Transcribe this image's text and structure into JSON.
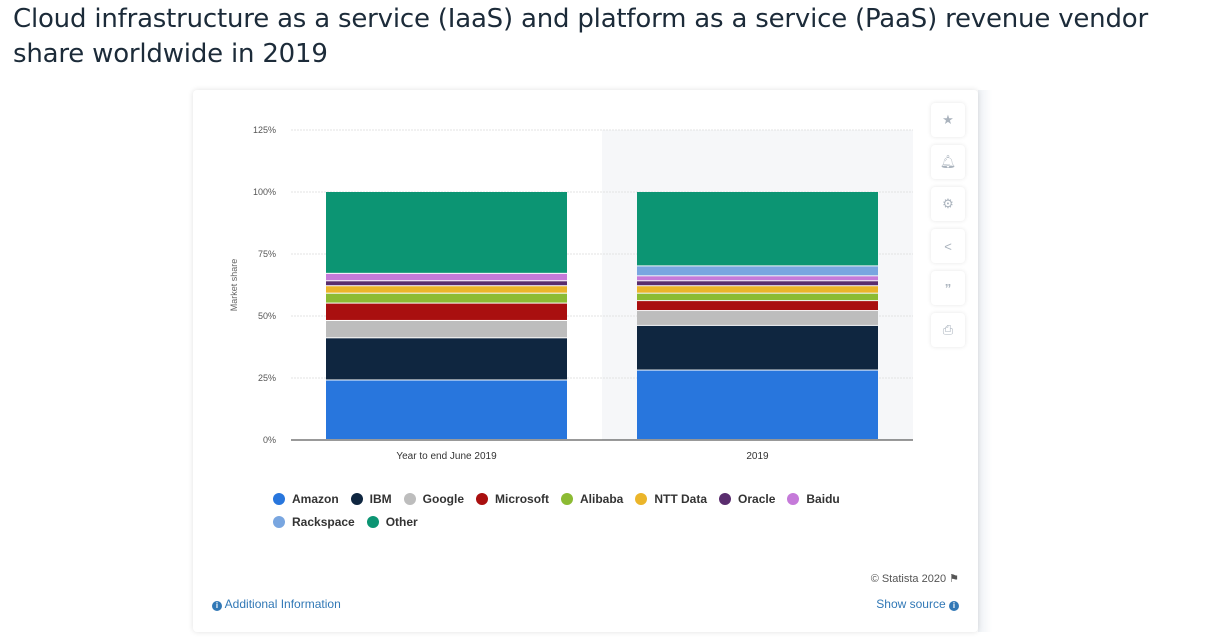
{
  "page_title": "Cloud infrastructure as a service (IaaS) and platform as a service (PaaS) revenue vendor share worldwide in 2019",
  "toolbar": {
    "icons": [
      "star-icon",
      "bell-icon",
      "gear-icon",
      "share-icon",
      "quote-icon",
      "print-icon"
    ]
  },
  "footer": {
    "copyright": "© Statista 2020",
    "additional_info": "Additional Information",
    "show_source": "Show source"
  },
  "chart_data": {
    "type": "bar",
    "stacked": true,
    "ylabel": "Market share",
    "xlabel": "",
    "ylim": [
      0,
      125
    ],
    "yticks": [
      "0%",
      "25%",
      "50%",
      "75%",
      "100%",
      "125%"
    ],
    "grid": true,
    "legend_position": "bottom",
    "categories": [
      "Year to end June 2019",
      "2019"
    ],
    "series": [
      {
        "name": "Amazon",
        "color": "#2876dd",
        "values": [
          24,
          28
        ]
      },
      {
        "name": "IBM",
        "color": "#0f2640",
        "values": [
          17,
          18
        ]
      },
      {
        "name": "Google",
        "color": "#bdbdbd",
        "values": [
          7,
          6
        ]
      },
      {
        "name": "Microsoft",
        "color": "#a90f0f",
        "values": [
          7,
          4
        ]
      },
      {
        "name": "Alibaba",
        "color": "#8cbb33",
        "values": [
          4,
          3
        ]
      },
      {
        "name": "NTT Data",
        "color": "#ebb52a",
        "values": [
          3,
          3
        ]
      },
      {
        "name": "Oracle",
        "color": "#5a2d6e",
        "values": [
          2,
          2
        ]
      },
      {
        "name": "Baidu",
        "color": "#c57ad9",
        "values": [
          3,
          2
        ]
      },
      {
        "name": "Rackspace",
        "color": "#79a6e0",
        "values": [
          0,
          4
        ]
      },
      {
        "name": "Other",
        "color": "#0c9573",
        "values": [
          33,
          30
        ]
      }
    ]
  }
}
